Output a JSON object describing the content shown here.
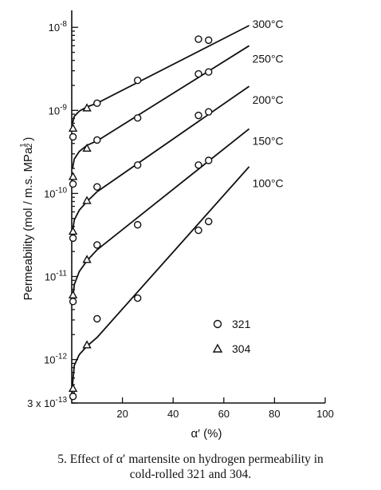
{
  "chart_data": {
    "type": "scatter",
    "x_label": "α′ (%)",
    "y_label_main": "Permeability (mol / m.s. MPa",
    "y_label_sup": "1",
    "y_label_sub": "2",
    "y_label_close": ")",
    "x_range": [
      0,
      100
    ],
    "y_range": [
      3e-13,
      1.6e-08
    ],
    "y_scale": "log",
    "x_ticks": [
      {
        "value": 20,
        "label": "20"
      },
      {
        "value": 40,
        "label": "40"
      },
      {
        "value": 60,
        "label": "60"
      },
      {
        "value": 80,
        "label": "80"
      },
      {
        "value": 100,
        "label": "100"
      }
    ],
    "y_ticks": [
      {
        "value": 1e-08,
        "mant": "10",
        "exp": "-8",
        "prefix": ""
      },
      {
        "value": 1e-09,
        "mant": "10",
        "exp": "-9",
        "prefix": ""
      },
      {
        "value": 1e-10,
        "mant": "10",
        "exp": "-10",
        "prefix": ""
      },
      {
        "value": 1e-11,
        "mant": "10",
        "exp": "-11",
        "prefix": ""
      },
      {
        "value": 1e-12,
        "mant": "10",
        "exp": "-12",
        "prefix": ""
      },
      {
        "value": 3e-13,
        "mant": "10",
        "exp": "-13",
        "prefix": "3 x "
      }
    ],
    "series": [
      {
        "name": "300°C",
        "label_at": [
          70,
          1.1e-08
        ],
        "curve": [
          [
            0.3,
            7e-10
          ],
          [
            1,
            8.5e-10
          ],
          [
            3,
            9.8e-10
          ],
          [
            6,
            1.1e-09
          ],
          [
            10,
            1.22e-09
          ],
          [
            70,
            1.05e-08
          ]
        ],
        "circles": [
          [
            0.5,
            4.8e-10
          ],
          [
            10,
            1.22e-09
          ],
          [
            26,
            2.3e-09
          ],
          [
            50,
            7.2e-09
          ],
          [
            54,
            7e-09
          ]
        ],
        "triangles": [
          [
            0.5,
            6.1e-10
          ],
          [
            6,
            1.07e-09
          ]
        ]
      },
      {
        "name": "250°C",
        "label_at": [
          70,
          4.2e-09
        ],
        "curve": [
          [
            0.3,
            2e-10
          ],
          [
            1,
            2.6e-10
          ],
          [
            3,
            3.2e-10
          ],
          [
            6,
            3.8e-10
          ],
          [
            10,
            4.3e-10
          ],
          [
            70,
            6e-09
          ]
        ],
        "circles": [
          [
            0.5,
            1.3e-10
          ],
          [
            10,
            4.4e-10
          ],
          [
            26,
            8.1e-10
          ],
          [
            50,
            2.75e-09
          ],
          [
            54,
            2.9e-09
          ]
        ],
        "triangles": [
          [
            0.5,
            1.6e-10
          ],
          [
            6,
            3.5e-10
          ]
        ]
      },
      {
        "name": "200°C",
        "label_at": [
          70,
          1.35e-09
        ],
        "curve": [
          [
            0.3,
            3.5e-11
          ],
          [
            1,
            4.8e-11
          ],
          [
            3,
            6.3e-11
          ],
          [
            6,
            8e-11
          ],
          [
            10,
            1.05e-10
          ],
          [
            70,
            1.95e-09
          ]
        ],
        "circles": [
          [
            0.5,
            2.9e-11
          ],
          [
            10,
            1.2e-10
          ],
          [
            26,
            2.2e-10
          ],
          [
            50,
            8.7e-10
          ],
          [
            54,
            9.6e-10
          ]
        ],
        "triangles": [
          [
            0.5,
            3.5e-11
          ],
          [
            6,
            8.2e-11
          ]
        ]
      },
      {
        "name": "150°C",
        "label_at": [
          70,
          4.3e-10
        ],
        "curve": [
          [
            0.3,
            5e-12
          ],
          [
            1,
            8e-12
          ],
          [
            3,
            1.15e-11
          ],
          [
            6,
            1.55e-11
          ],
          [
            10,
            2.1e-11
          ],
          [
            70,
            6e-10
          ]
        ],
        "circles": [
          [
            0.5,
            5e-12
          ],
          [
            10,
            2.4e-11
          ],
          [
            26,
            4.2e-11
          ],
          [
            50,
            2.2e-10
          ],
          [
            54,
            2.5e-10
          ]
        ],
        "triangles": [
          [
            0.5,
            6e-12
          ],
          [
            6,
            1.6e-11
          ]
        ]
      },
      {
        "name": "100°C",
        "label_at": [
          70,
          1.33e-10
        ],
        "curve": [
          [
            0.3,
            5e-13
          ],
          [
            1,
            8.5e-13
          ],
          [
            3,
            1.15e-12
          ],
          [
            6,
            1.45e-12
          ],
          [
            10,
            1.85e-12
          ],
          [
            70,
            2.1e-10
          ]
        ],
        "circles": [
          [
            0.5,
            3.6e-13
          ],
          [
            10,
            3.1e-12
          ],
          [
            26,
            5.5e-12
          ],
          [
            50,
            3.6e-11
          ],
          [
            54,
            4.6e-11
          ]
        ],
        "triangles": [
          [
            0.5,
            4.5e-13
          ],
          [
            6,
            1.5e-12
          ]
        ]
      }
    ],
    "legend": [
      {
        "marker": "circle",
        "label": "321"
      },
      {
        "marker": "triangle",
        "label": "304"
      }
    ],
    "legend_placement": "lower-right"
  },
  "caption": {
    "line1": "5. Effect of α′ martensite on hydrogen permeability in",
    "line2": "cold-rolled 321 and 304."
  }
}
